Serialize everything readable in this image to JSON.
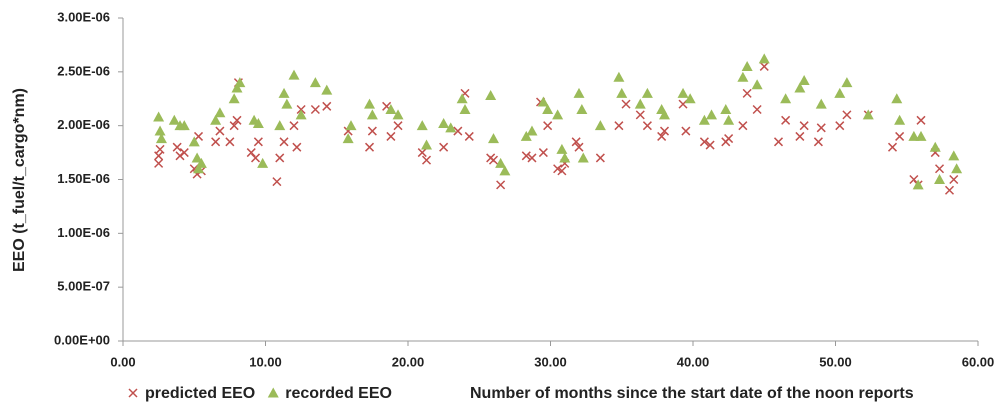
{
  "chart_data": {
    "type": "scatter",
    "ylabel": "EEO (t_fuel/t_cargo*nm)",
    "xlabel": "Number of months since the start date of the noon reports",
    "xlim": [
      0,
      60
    ],
    "ylim": [
      0,
      3e-06
    ],
    "xticks": [
      {
        "value": 0,
        "label": "0.00"
      },
      {
        "value": 10,
        "label": "10.00"
      },
      {
        "value": 20,
        "label": "20.00"
      },
      {
        "value": 30,
        "label": "30.00"
      },
      {
        "value": 40,
        "label": "40.00"
      },
      {
        "value": 50,
        "label": "50.00"
      },
      {
        "value": 60,
        "label": "60.00"
      }
    ],
    "yticks": [
      {
        "value": 0,
        "label": "0.00E+00"
      },
      {
        "value": 5e-07,
        "label": "5.00E-07"
      },
      {
        "value": 1e-06,
        "label": "1.00E-06"
      },
      {
        "value": 1.5e-06,
        "label": "1.50E-06"
      },
      {
        "value": 2e-06,
        "label": "2.00E-06"
      },
      {
        "value": 2.5e-06,
        "label": "2.50E-06"
      },
      {
        "value": 3e-06,
        "label": "3.00E-06"
      }
    ],
    "grid": false,
    "legend": "bottom-left",
    "series": [
      {
        "name": "predicted EEO",
        "color": "#c0504d",
        "marker": "x",
        "x": [
          2.5,
          2.5,
          2.6,
          3.8,
          4.0,
          4.3,
          5.0,
          5.2,
          5.5,
          5.3,
          6.5,
          6.8,
          7.5,
          7.8,
          8.0,
          8.1,
          9.0,
          9.3,
          9.5,
          10.8,
          11.0,
          11.3,
          12.0,
          12.2,
          12.5,
          13.5,
          14.3,
          15.8,
          17.3,
          17.5,
          18.5,
          18.8,
          19.3,
          21.0,
          21.3,
          22.5,
          23.5,
          24.0,
          24.3,
          25.8,
          26.0,
          26.5,
          28.3,
          28.7,
          29.3,
          29.5,
          29.8,
          30.5,
          30.8,
          31.0,
          31.8,
          32.0,
          33.5,
          34.8,
          35.3,
          36.3,
          36.8,
          37.8,
          38.0,
          39.3,
          39.5,
          40.8,
          41.2,
          42.3,
          42.5,
          43.5,
          43.8,
          44.5,
          45.0,
          46.0,
          46.5,
          47.5,
          47.8,
          48.8,
          49.0,
          50.3,
          50.8,
          52.3,
          54.0,
          54.5,
          55.5,
          55.8,
          56.0,
          57.0,
          57.3,
          58.0,
          58.3
        ],
        "values": [
          1.65e-06,
          1.72e-06,
          1.78e-06,
          1.8e-06,
          1.72e-06,
          1.75e-06,
          1.6e-06,
          1.55e-06,
          1.58e-06,
          1.9e-06,
          1.85e-06,
          1.95e-06,
          1.85e-06,
          2e-06,
          2.05e-06,
          2.4e-06,
          1.75e-06,
          1.7e-06,
          1.85e-06,
          1.48e-06,
          1.7e-06,
          1.85e-06,
          2e-06,
          1.8e-06,
          2.15e-06,
          2.15e-06,
          2.18e-06,
          1.95e-06,
          1.8e-06,
          1.95e-06,
          2.18e-06,
          1.9e-06,
          2e-06,
          1.75e-06,
          1.68e-06,
          1.8e-06,
          1.95e-06,
          2.3e-06,
          1.9e-06,
          1.7e-06,
          1.68e-06,
          1.45e-06,
          1.72e-06,
          1.7e-06,
          2.22e-06,
          1.75e-06,
          2e-06,
          1.6e-06,
          1.58e-06,
          1.65e-06,
          1.85e-06,
          1.8e-06,
          1.7e-06,
          2e-06,
          2.2e-06,
          2.1e-06,
          2e-06,
          1.9e-06,
          1.95e-06,
          2.2e-06,
          1.95e-06,
          1.85e-06,
          1.82e-06,
          1.85e-06,
          1.88e-06,
          2e-06,
          2.3e-06,
          2.15e-06,
          2.55e-06,
          1.85e-06,
          2.05e-06,
          1.9e-06,
          2e-06,
          1.85e-06,
          1.98e-06,
          2e-06,
          2.1e-06,
          2.1e-06,
          1.8e-06,
          1.9e-06,
          1.5e-06,
          1.45e-06,
          2.05e-06,
          1.75e-06,
          1.6e-06,
          1.4e-06,
          1.5e-06
        ]
      },
      {
        "name": "recorded EEO",
        "color": "#9bbb59",
        "marker": "triangle",
        "x": [
          2.5,
          2.6,
          2.7,
          3.6,
          4.0,
          4.3,
          5.0,
          5.2,
          5.3,
          5.5,
          6.5,
          6.8,
          7.8,
          8.0,
          8.2,
          9.2,
          9.5,
          9.8,
          11.3,
          11.5,
          11.0,
          12.0,
          12.5,
          13.5,
          14.3,
          15.8,
          16.0,
          17.3,
          17.5,
          18.8,
          19.3,
          21.0,
          21.3,
          22.5,
          23.0,
          23.8,
          24.0,
          25.8,
          26.0,
          26.5,
          26.8,
          28.3,
          28.7,
          29.5,
          29.8,
          30.5,
          30.8,
          31.0,
          32.0,
          32.2,
          32.3,
          33.5,
          34.8,
          35.0,
          36.3,
          36.8,
          37.8,
          38.0,
          39.3,
          39.8,
          40.8,
          41.3,
          42.3,
          42.5,
          43.5,
          43.8,
          44.5,
          45.0,
          46.5,
          47.5,
          47.8,
          49.0,
          50.3,
          50.8,
          52.3,
          54.3,
          54.5,
          55.5,
          55.8,
          56.0,
          57.0,
          57.3,
          58.3,
          58.5
        ],
        "values": [
          2.08e-06,
          1.95e-06,
          1.88e-06,
          2.05e-06,
          2e-06,
          2e-06,
          1.85e-06,
          1.7e-06,
          1.6e-06,
          1.65e-06,
          2.05e-06,
          2.12e-06,
          2.25e-06,
          2.35e-06,
          2.4e-06,
          2.05e-06,
          2.02e-06,
          1.65e-06,
          2.3e-06,
          2.2e-06,
          2e-06,
          2.47e-06,
          2.1e-06,
          2.4e-06,
          2.33e-06,
          1.88e-06,
          2e-06,
          2.2e-06,
          2.1e-06,
          2.15e-06,
          2.1e-06,
          2e-06,
          1.82e-06,
          2.02e-06,
          1.98e-06,
          2.25e-06,
          2.15e-06,
          2.28e-06,
          1.88e-06,
          1.65e-06,
          1.58e-06,
          1.9e-06,
          1.95e-06,
          2.22e-06,
          2.15e-06,
          2.1e-06,
          1.78e-06,
          1.7e-06,
          2.3e-06,
          2.15e-06,
          1.7e-06,
          2e-06,
          2.45e-06,
          2.3e-06,
          2.2e-06,
          2.3e-06,
          2.15e-06,
          2.1e-06,
          2.3e-06,
          2.25e-06,
          2.05e-06,
          2.1e-06,
          2.15e-06,
          2.05e-06,
          2.45e-06,
          2.55e-06,
          2.38e-06,
          2.62e-06,
          2.25e-06,
          2.35e-06,
          2.42e-06,
          2.2e-06,
          2.3e-06,
          2.4e-06,
          2.1e-06,
          2.25e-06,
          2.05e-06,
          1.9e-06,
          1.45e-06,
          1.9e-06,
          1.8e-06,
          1.5e-06,
          1.72e-06,
          1.6e-06
        ]
      }
    ]
  }
}
